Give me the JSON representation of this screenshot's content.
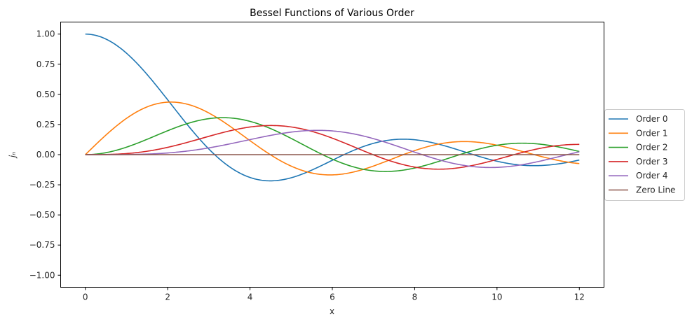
{
  "chart_data": {
    "type": "line",
    "title": "Bessel Functions of Various Order",
    "xlabel": "x",
    "ylabel": "jₙ",
    "xlim": [
      -0.6,
      12.6
    ],
    "ylim": [
      -1.1,
      1.1
    ],
    "xticks": [
      0,
      2,
      4,
      6,
      8,
      10,
      12
    ],
    "xtick_labels": [
      "0",
      "2",
      "4",
      "6",
      "8",
      "10",
      "12"
    ],
    "yticks": [
      -1.0,
      -0.75,
      -0.5,
      -0.25,
      0.0,
      0.25,
      0.5,
      0.75,
      1.0
    ],
    "ytick_labels": [
      "−1.00",
      "−0.75",
      "−0.50",
      "−0.25",
      "0.00",
      "0.25",
      "0.50",
      "0.75",
      "1.00"
    ],
    "grid": false,
    "legend_position": "outside-right",
    "x_range": [
      0,
      12
    ],
    "series": [
      {
        "name": "Order 0",
        "order": 0,
        "color": "#1f77b4"
      },
      {
        "name": "Order 1",
        "order": 1,
        "color": "#ff7f0e"
      },
      {
        "name": "Order 2",
        "order": 2,
        "color": "#2ca02c"
      },
      {
        "name": "Order 3",
        "order": 3,
        "color": "#d62728"
      },
      {
        "name": "Order 4",
        "order": 4,
        "color": "#9467bd"
      },
      {
        "name": "Zero Line",
        "order": null,
        "color": "#8c564b"
      }
    ]
  }
}
